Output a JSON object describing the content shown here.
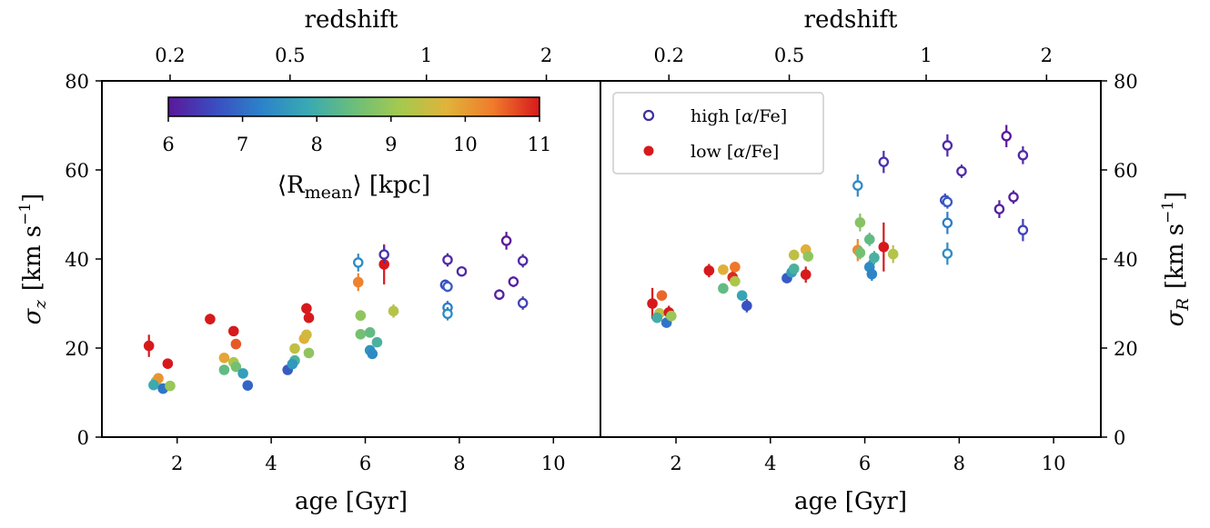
{
  "colors": {
    "viridis_stops": [
      "#5a189a",
      "#3b4cc0",
      "#2c82c9",
      "#39a9b3",
      "#6bbe7a",
      "#a5c94f",
      "#e0b33a",
      "#f07b2c",
      "#d7191c"
    ],
    "high_alpha_marker_style": "open",
    "low_alpha_marker_style": "filled",
    "axis": "#000000"
  },
  "chart_data": [
    {
      "type": "scatter",
      "panel": "left",
      "xlabel": "age [Gyr]",
      "ylabel": "σ_z [km s^-1]",
      "ylabel_parts": {
        "sigma": "σ",
        "sub": "z",
        "unit_pre": "[km s",
        "unit_exp": "−1",
        "unit_post": "]"
      },
      "xlim": [
        0.4,
        11.0
      ],
      "ylim": [
        0,
        80
      ],
      "x_ticks": [
        2,
        4,
        6,
        8,
        10
      ],
      "y_ticks": [
        0,
        20,
        40,
        60,
        80
      ],
      "top_axis": {
        "label": "redshift",
        "ticks": [
          {
            "label": "0.2",
            "age": 1.85
          },
          {
            "label": "0.5",
            "age": 4.4
          },
          {
            "label": "1",
            "age": 7.3
          },
          {
            "label": "2",
            "age": 9.85
          }
        ]
      },
      "colorbar": {
        "label": "⟨R_mean⟩ [kpc]",
        "label_main": "⟨R",
        "label_sub": "mean",
        "label_end": "⟩ [kpc]",
        "range": [
          6,
          11
        ],
        "ticks": [
          "6",
          "7",
          "8",
          "9",
          "10",
          "11"
        ]
      },
      "series": [
        {
          "population": "low",
          "points": [
            {
              "x": 1.4,
              "y": 20.5,
              "err": 2.5,
              "c": 11.0
            },
            {
              "x": 1.55,
              "y": 12.5,
              "err": 0.6,
              "c": 8.8
            },
            {
              "x": 1.6,
              "y": 13.2,
              "err": 0.6,
              "c": 10.1
            },
            {
              "x": 1.5,
              "y": 11.7,
              "err": 0.6,
              "c": 7.9
            },
            {
              "x": 1.7,
              "y": 10.9,
              "err": 0.5,
              "c": 7.1
            },
            {
              "x": 1.8,
              "y": 16.5,
              "err": 0.8,
              "c": 11.0
            },
            {
              "x": 1.85,
              "y": 11.5,
              "err": 0.5,
              "c": 9.0
            },
            {
              "x": 2.7,
              "y": 26.5,
              "err": 1.2,
              "c": 11.0
            },
            {
              "x": 3.0,
              "y": 17.8,
              "err": 0.8,
              "c": 9.9
            },
            {
              "x": 3.0,
              "y": 15.1,
              "err": 0.6,
              "c": 8.4
            },
            {
              "x": 3.2,
              "y": 23.8,
              "err": 1.0,
              "c": 11.0
            },
            {
              "x": 3.25,
              "y": 20.9,
              "err": 0.9,
              "c": 10.6
            },
            {
              "x": 3.2,
              "y": 16.8,
              "err": 0.7,
              "c": 9.2
            },
            {
              "x": 3.25,
              "y": 15.8,
              "err": 0.6,
              "c": 8.6
            },
            {
              "x": 3.4,
              "y": 14.3,
              "err": 0.6,
              "c": 7.7
            },
            {
              "x": 3.5,
              "y": 11.6,
              "err": 0.5,
              "c": 6.9
            },
            {
              "x": 4.35,
              "y": 15.1,
              "err": 0.7,
              "c": 6.8
            },
            {
              "x": 4.5,
              "y": 19.9,
              "err": 0.8,
              "c": 9.4
            },
            {
              "x": 4.5,
              "y": 17.2,
              "err": 0.7,
              "c": 8.1
            },
            {
              "x": 4.45,
              "y": 16.4,
              "err": 0.7,
              "c": 7.6
            },
            {
              "x": 4.7,
              "y": 22.1,
              "err": 0.9,
              "c": 9.8
            },
            {
              "x": 4.75,
              "y": 23.0,
              "err": 0.9,
              "c": 9.6
            },
            {
              "x": 4.75,
              "y": 28.9,
              "err": 1.2,
              "c": 11.0
            },
            {
              "x": 4.8,
              "y": 26.8,
              "err": 1.1,
              "c": 11.0
            },
            {
              "x": 4.8,
              "y": 18.9,
              "err": 0.8,
              "c": 8.9
            },
            {
              "x": 5.85,
              "y": 34.8,
              "err": 2.0,
              "c": 10.3
            },
            {
              "x": 5.9,
              "y": 27.3,
              "err": 1.2,
              "c": 8.9
            },
            {
              "x": 5.9,
              "y": 23.1,
              "err": 1.0,
              "c": 8.6
            },
            {
              "x": 6.1,
              "y": 23.5,
              "err": 1.0,
              "c": 8.4
            },
            {
              "x": 6.1,
              "y": 19.5,
              "err": 1.0,
              "c": 7.5
            },
            {
              "x": 6.15,
              "y": 18.7,
              "err": 0.9,
              "c": 7.4
            },
            {
              "x": 6.25,
              "y": 21.3,
              "err": 1.0,
              "c": 8.1
            },
            {
              "x": 6.4,
              "y": 38.8,
              "err": 4.5,
              "c": 11.0
            },
            {
              "x": 6.6,
              "y": 28.3,
              "err": 1.5,
              "c": 9.3
            }
          ]
        },
        {
          "population": "high",
          "points": [
            {
              "x": 5.85,
              "y": 39.2,
              "err": 2.0,
              "c": 7.4
            },
            {
              "x": 6.4,
              "y": 41.0,
              "err": 2.0,
              "c": 6.3
            },
            {
              "x": 7.75,
              "y": 39.8,
              "err": 1.5,
              "c": 6.2
            },
            {
              "x": 8.05,
              "y": 37.2,
              "err": 1.0,
              "c": 6.2
            },
            {
              "x": 7.7,
              "y": 34.2,
              "err": 1.2,
              "c": 6.6
            },
            {
              "x": 7.75,
              "y": 33.8,
              "err": 1.2,
              "c": 6.8
            },
            {
              "x": 7.75,
              "y": 29.1,
              "err": 1.5,
              "c": 7.2
            },
            {
              "x": 7.75,
              "y": 27.7,
              "err": 1.5,
              "c": 7.4
            },
            {
              "x": 9.0,
              "y": 44.1,
              "err": 2.0,
              "c": 6.0
            },
            {
              "x": 9.35,
              "y": 39.6,
              "err": 1.5,
              "c": 6.2
            },
            {
              "x": 8.85,
              "y": 32.0,
              "err": 1.2,
              "c": 6.1
            },
            {
              "x": 9.15,
              "y": 34.9,
              "err": 1.2,
              "c": 6.1
            },
            {
              "x": 9.35,
              "y": 30.1,
              "err": 1.5,
              "c": 6.5
            }
          ]
        }
      ]
    },
    {
      "type": "scatter",
      "panel": "right",
      "xlabel": "age [Gyr]",
      "ylabel": "σ_R [km s^-1]",
      "ylabel_parts": {
        "sigma": "σ",
        "sub": "R",
        "unit_pre": "[km s",
        "unit_exp": "−1",
        "unit_post": "]"
      },
      "xlim": [
        0.4,
        11.0
      ],
      "ylim": [
        0,
        80
      ],
      "x_ticks": [
        2,
        4,
        6,
        8,
        10
      ],
      "y_ticks": [
        0,
        20,
        40,
        60,
        80
      ],
      "top_axis": {
        "label": "redshift",
        "ticks": [
          {
            "label": "0.2",
            "age": 1.85
          },
          {
            "label": "0.5",
            "age": 4.4
          },
          {
            "label": "1",
            "age": 7.3
          },
          {
            "label": "2",
            "age": 9.85
          }
        ]
      },
      "legend": {
        "position": "top-left",
        "entries": [
          {
            "label_main": "high [",
            "label_alpha": "α",
            "label_end": "/Fe]",
            "marker": "open",
            "color": "#3b2fa0"
          },
          {
            "label_main": "low [",
            "label_alpha": "α",
            "label_end": "/Fe]",
            "marker": "filled",
            "color": "#d7191c"
          }
        ]
      },
      "series": [
        {
          "population": "low",
          "points": [
            {
              "x": 1.5,
              "y": 30.0,
              "err": 3.5,
              "c": 11.0
            },
            {
              "x": 1.65,
              "y": 27.8,
              "err": 0.8,
              "c": 9.4
            },
            {
              "x": 1.6,
              "y": 26.8,
              "err": 0.8,
              "c": 8.0
            },
            {
              "x": 1.7,
              "y": 31.8,
              "err": 1.0,
              "c": 10.5
            },
            {
              "x": 1.8,
              "y": 25.7,
              "err": 0.8,
              "c": 7.1
            },
            {
              "x": 1.85,
              "y": 28.0,
              "err": 1.5,
              "c": 11.0
            },
            {
              "x": 1.9,
              "y": 27.2,
              "err": 0.8,
              "c": 9.0
            },
            {
              "x": 2.7,
              "y": 37.4,
              "err": 1.5,
              "c": 11.0
            },
            {
              "x": 3.0,
              "y": 37.6,
              "err": 1.0,
              "c": 9.8
            },
            {
              "x": 3.0,
              "y": 33.4,
              "err": 1.0,
              "c": 8.4
            },
            {
              "x": 3.2,
              "y": 35.9,
              "err": 1.5,
              "c": 10.9
            },
            {
              "x": 3.25,
              "y": 38.2,
              "err": 1.2,
              "c": 10.4
            },
            {
              "x": 3.25,
              "y": 35.0,
              "err": 1.0,
              "c": 9.2
            },
            {
              "x": 3.4,
              "y": 31.8,
              "err": 1.0,
              "c": 7.8
            },
            {
              "x": 3.5,
              "y": 29.5,
              "err": 1.5,
              "c": 6.7
            },
            {
              "x": 4.35,
              "y": 35.7,
              "err": 1.0,
              "c": 6.8
            },
            {
              "x": 4.45,
              "y": 37.0,
              "err": 1.0,
              "c": 7.7
            },
            {
              "x": 4.5,
              "y": 37.8,
              "err": 1.0,
              "c": 8.1
            },
            {
              "x": 4.5,
              "y": 40.9,
              "err": 1.2,
              "c": 9.4
            },
            {
              "x": 4.75,
              "y": 42.1,
              "err": 1.2,
              "c": 9.8
            },
            {
              "x": 4.8,
              "y": 40.6,
              "err": 1.2,
              "c": 8.9
            },
            {
              "x": 4.75,
              "y": 36.5,
              "err": 1.8,
              "c": 11.0
            },
            {
              "x": 5.85,
              "y": 42.0,
              "err": 2.5,
              "c": 10.2
            },
            {
              "x": 5.9,
              "y": 48.2,
              "err": 2.0,
              "c": 8.8
            },
            {
              "x": 5.9,
              "y": 41.4,
              "err": 1.5,
              "c": 8.6
            },
            {
              "x": 6.1,
              "y": 44.4,
              "err": 1.5,
              "c": 8.4
            },
            {
              "x": 6.2,
              "y": 40.3,
              "err": 1.5,
              "c": 8.1
            },
            {
              "x": 6.1,
              "y": 38.2,
              "err": 1.5,
              "c": 7.4
            },
            {
              "x": 6.15,
              "y": 36.6,
              "err": 1.5,
              "c": 7.3
            },
            {
              "x": 6.4,
              "y": 42.7,
              "err": 5.5,
              "c": 11.0
            },
            {
              "x": 6.6,
              "y": 41.1,
              "err": 2.0,
              "c": 9.3
            }
          ]
        },
        {
          "population": "high",
          "points": [
            {
              "x": 5.85,
              "y": 56.5,
              "err": 2.5,
              "c": 7.4
            },
            {
              "x": 6.4,
              "y": 61.8,
              "err": 2.5,
              "c": 6.3
            },
            {
              "x": 7.75,
              "y": 65.5,
              "err": 2.5,
              "c": 6.2
            },
            {
              "x": 8.05,
              "y": 59.7,
              "err": 1.5,
              "c": 6.2
            },
            {
              "x": 7.7,
              "y": 53.2,
              "err": 1.5,
              "c": 6.6
            },
            {
              "x": 7.75,
              "y": 52.8,
              "err": 1.5,
              "c": 6.8
            },
            {
              "x": 7.75,
              "y": 48.1,
              "err": 2.5,
              "c": 7.2
            },
            {
              "x": 7.75,
              "y": 41.2,
              "err": 2.5,
              "c": 7.4
            },
            {
              "x": 9.0,
              "y": 67.6,
              "err": 2.5,
              "c": 6.0
            },
            {
              "x": 9.35,
              "y": 63.3,
              "err": 2.0,
              "c": 6.2
            },
            {
              "x": 8.85,
              "y": 51.2,
              "err": 2.0,
              "c": 6.1
            },
            {
              "x": 9.15,
              "y": 53.9,
              "err": 1.5,
              "c": 6.1
            },
            {
              "x": 9.35,
              "y": 46.5,
              "err": 2.5,
              "c": 6.5
            }
          ]
        }
      ]
    }
  ]
}
